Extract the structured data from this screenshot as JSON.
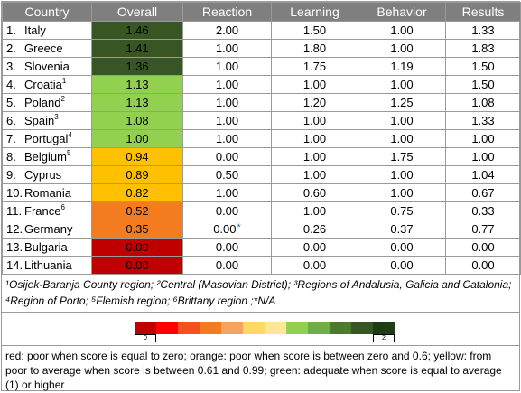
{
  "headers": [
    "Country",
    "Overall",
    "Reaction",
    "Learning",
    "Behavior",
    "Results"
  ],
  "rows": [
    {
      "n": "1.",
      "country": "Italy",
      "sup": "",
      "overall": "1.46",
      "color": "#375623",
      "reaction": "2.00",
      "learning": "1.50",
      "behavior": "1.00",
      "results": "1.33"
    },
    {
      "n": "2.",
      "country": "Greece",
      "sup": "",
      "overall": "1.41",
      "color": "#375623",
      "reaction": "1.00",
      "learning": "1.80",
      "behavior": "1.00",
      "results": "1.83"
    },
    {
      "n": "3.",
      "country": "Slovenia",
      "sup": "",
      "overall": "1.36",
      "color": "#375623",
      "reaction": "1.00",
      "learning": "1.75",
      "behavior": "1.19",
      "results": "1.50"
    },
    {
      "n": "4.",
      "country": "Croatia",
      "sup": "1",
      "overall": "1.13",
      "color": "#92d050",
      "reaction": "1.00",
      "learning": "1.00",
      "behavior": "1.00",
      "results": "1.50"
    },
    {
      "n": "5.",
      "country": "Poland",
      "sup": "2",
      "overall": "1.13",
      "color": "#92d050",
      "reaction": "1.00",
      "learning": "1.20",
      "behavior": "1.25",
      "results": "1.08"
    },
    {
      "n": "6.",
      "country": "Spain",
      "sup": "3",
      "overall": "1.08",
      "color": "#92d050",
      "reaction": "1.00",
      "learning": "1.00",
      "behavior": "1.00",
      "results": "1.33"
    },
    {
      "n": "7.",
      "country": "Portugal",
      "sup": "4",
      "overall": "1.00",
      "color": "#92d050",
      "reaction": "1.00",
      "learning": "1.00",
      "behavior": "1.00",
      "results": "1.00"
    },
    {
      "n": "8.",
      "country": "Belgium",
      "sup": "5",
      "overall": "0.94",
      "color": "#ffc000",
      "reaction": "0.00",
      "learning": "1.00",
      "behavior": "1.75",
      "results": "1.00"
    },
    {
      "n": "9.",
      "country": "Cyprus",
      "sup": "",
      "overall": "0.89",
      "color": "#ffc000",
      "reaction": "0.50",
      "learning": "1.00",
      "behavior": "1.00",
      "results": "1.04"
    },
    {
      "n": "10.",
      "country": "Romania",
      "sup": "",
      "overall": "0.82",
      "color": "#ffc000",
      "reaction": "1.00",
      "learning": "0.60",
      "behavior": "1.00",
      "results": "0.67"
    },
    {
      "n": "11.",
      "country": "France",
      "sup": "6",
      "overall": "0.52",
      "color": "#f47c20",
      "reaction": "0.00",
      "learning": "1.00",
      "behavior": "0.75",
      "results": "0.33"
    },
    {
      "n": "12.",
      "country": "Germany",
      "sup": "",
      "overall": "0.35",
      "color": "#f47c20",
      "reaction": "0.00",
      "reaction_mark": "*",
      "learning": "0.26",
      "behavior": "0.37",
      "results": "0.77"
    },
    {
      "n": "13.",
      "country": "Bulgaria",
      "sup": "",
      "overall": "0.00",
      "color": "#c00000",
      "reaction": "0.00",
      "learning": "0.00",
      "behavior": "0.00",
      "results": "0.00"
    },
    {
      "n": "14.",
      "country": "Lithuania",
      "sup": "",
      "overall": "0.00",
      "color": "#c00000",
      "reaction": "0.00",
      "learning": "0.00",
      "behavior": "0.00",
      "results": "0.00"
    }
  ],
  "footnote": "¹Osijek-Baranja County region; ²Central (Masovian District); ³Regions of Andalusia, Galicia and Catalonia; ⁴Region of Porto; ⁵Flemish region; ⁶Brittany region ;*N/A",
  "scale": {
    "colors": [
      "#c00000",
      "#ff0000",
      "#f4511e",
      "#f47c20",
      "#f4a460",
      "#ffd966",
      "#ffe699",
      "#92d050",
      "#70ad47",
      "#4e7a2e",
      "#375623",
      "#1e3d14"
    ],
    "min_label": "0",
    "max_label": "2"
  },
  "legend": "red: poor when score is equal to zero; orange: poor when score is between zero and 0.6; yellow: from poor to average when score is between 0.61 and 0.99; green: adequate when score is equal to average (1) or higher"
}
